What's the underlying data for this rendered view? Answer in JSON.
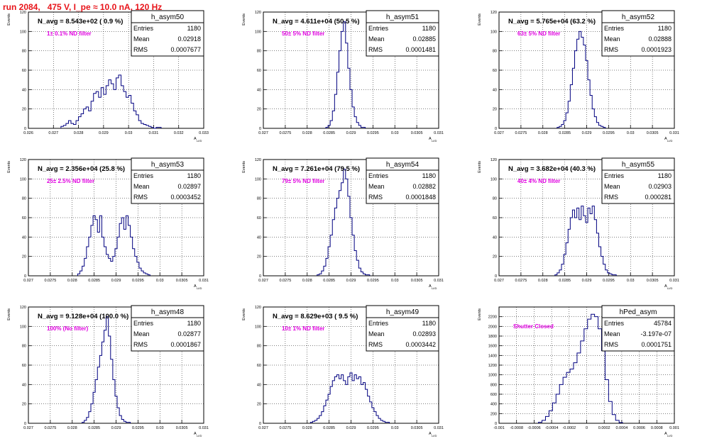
{
  "run_title": "run 2084,   475 V, I_pe ≈ 10.0 nA, 120 Hz",
  "y_axis_title": "Events",
  "x_axis_title": "A",
  "x_axis_subscript": "LI/D",
  "stat_labels": {
    "entries": "Entries",
    "mean": "Mean",
    "rms": "RMS"
  },
  "colors": {
    "title": "#e8141a",
    "annotation": "#e000e0",
    "hist": "#000080",
    "grid": "#000000"
  },
  "chart_data": [
    {
      "type": "histogram",
      "name": "h_asym50",
      "navg_label": "N_avg = 8.543e+02 ( 0.9 %)",
      "annotation": "1± 0.1% ND filter",
      "entries": "1180",
      "mean": "0.02918",
      "rms": "0.0007677",
      "xlim": [
        0.026,
        0.033
      ],
      "ylim": [
        0,
        120
      ],
      "xticks": [
        "0.026",
        "0.027",
        "0.028",
        "0.029",
        "0.03",
        "0.031",
        "0.032",
        "0.033"
      ],
      "yticks": [
        "0",
        "20",
        "40",
        "60",
        "80",
        "100",
        "120"
      ],
      "x": [
        0.02735,
        0.02745,
        0.02755,
        0.02765,
        0.02775,
        0.02785,
        0.02795,
        0.02805,
        0.02815,
        0.02825,
        0.02835,
        0.02845,
        0.02855,
        0.02865,
        0.02875,
        0.02885,
        0.02895,
        0.02905,
        0.02915,
        0.02925,
        0.02935,
        0.02945,
        0.02955,
        0.02965,
        0.02975,
        0.02985,
        0.02995,
        0.03005,
        0.03015,
        0.03025,
        0.03035,
        0.03045,
        0.03055,
        0.03065,
        0.03075,
        0.03085,
        0.03095,
        0.03105,
        0.03115,
        0.03125
      ],
      "values": [
        2,
        3,
        5,
        8,
        5,
        4,
        8,
        12,
        15,
        20,
        22,
        18,
        28,
        36,
        38,
        32,
        42,
        35,
        44,
        50,
        46,
        40,
        52,
        55,
        44,
        38,
        32,
        34,
        26,
        18,
        14,
        8,
        5,
        4,
        3,
        2,
        1,
        0,
        1,
        1
      ]
    },
    {
      "type": "histogram",
      "name": "h_asym51",
      "navg_label": "N_avg = 4.611e+04 (50.5 %)",
      "annotation": "50± 5% ND filter",
      "entries": "1180",
      "mean": "0.02885",
      "rms": "0.0001481",
      "xlim": [
        0.027,
        0.031
      ],
      "ylim": [
        0,
        120
      ],
      "xticks": [
        "0.027",
        "0.0275",
        "0.028",
        "0.0285",
        "0.029",
        "0.0295",
        "0.03",
        "0.0305",
        "0.031"
      ],
      "yticks": [
        "0",
        "20",
        "40",
        "60",
        "80",
        "100",
        "120"
      ],
      "x": [
        0.02845,
        0.0285,
        0.02855,
        0.0286,
        0.02865,
        0.0287,
        0.02875,
        0.0288,
        0.02885,
        0.0289,
        0.02895,
        0.029,
        0.02905,
        0.0291,
        0.02915,
        0.0292,
        0.02925,
        0.0293
      ],
      "values": [
        1,
        3,
        8,
        18,
        35,
        58,
        80,
        100,
        110,
        88,
        62,
        40,
        22,
        12,
        6,
        3,
        1,
        1
      ]
    },
    {
      "type": "histogram",
      "name": "h_asym52",
      "navg_label": "N_avg = 5.765e+04 (63.2 %)",
      "annotation": "63± 5% ND filter",
      "entries": "1180",
      "mean": "0.02888",
      "rms": "0.0001923",
      "xlim": [
        0.027,
        0.031
      ],
      "ylim": [
        0,
        120
      ],
      "xticks": [
        "0.027",
        "0.0275",
        "0.028",
        "0.0285",
        "0.029",
        "0.0295",
        "0.03",
        "0.0305",
        "0.031"
      ],
      "yticks": [
        "0",
        "20",
        "40",
        "60",
        "80",
        "100",
        "120"
      ],
      "x": [
        0.02835,
        0.0284,
        0.02845,
        0.0285,
        0.02855,
        0.0286,
        0.02865,
        0.0287,
        0.02875,
        0.0288,
        0.02885,
        0.0289,
        0.02895,
        0.029,
        0.02905,
        0.0291,
        0.02915,
        0.0292,
        0.02925,
        0.0293,
        0.02935,
        0.0294
      ],
      "values": [
        1,
        2,
        4,
        8,
        16,
        28,
        45,
        62,
        80,
        92,
        100,
        94,
        86,
        70,
        50,
        34,
        20,
        12,
        6,
        3,
        2,
        1
      ]
    },
    {
      "type": "histogram",
      "name": "h_asym53",
      "navg_label": "N_avg = 2.356e+04 (25.8 %)",
      "annotation": "25± 2.5% ND filter",
      "entries": "1180",
      "mean": "0.02897",
      "rms": "0.0003452",
      "xlim": [
        0.027,
        0.031
      ],
      "ylim": [
        0,
        120
      ],
      "xticks": [
        "0.027",
        "0.0275",
        "0.028",
        "0.0285",
        "0.029",
        "0.0295",
        "0.03",
        "0.0305",
        "0.031"
      ],
      "yticks": [
        "0",
        "20",
        "40",
        "60",
        "80",
        "100",
        "120"
      ],
      "x": [
        0.02815,
        0.0282,
        0.02825,
        0.0283,
        0.02835,
        0.0284,
        0.02845,
        0.0285,
        0.02855,
        0.0286,
        0.02865,
        0.0287,
        0.02875,
        0.0288,
        0.02885,
        0.0289,
        0.02895,
        0.029,
        0.02905,
        0.0291,
        0.02915,
        0.0292,
        0.02925,
        0.0293,
        0.02935,
        0.0294,
        0.02945,
        0.0295,
        0.02955,
        0.0296,
        0.02965,
        0.0297,
        0.02975
      ],
      "values": [
        2,
        5,
        10,
        18,
        30,
        40,
        52,
        62,
        58,
        45,
        62,
        40,
        30,
        22,
        18,
        15,
        20,
        28,
        40,
        54,
        60,
        48,
        62,
        52,
        40,
        28,
        20,
        14,
        8,
        5,
        3,
        2,
        1
      ]
    },
    {
      "type": "histogram",
      "name": "h_asym54",
      "navg_label": "N_avg = 7.261e+04 (79.5 %)",
      "annotation": "79± 5% ND filter",
      "entries": "1180",
      "mean": "0.02882",
      "rms": "0.0001848",
      "xlim": [
        0.027,
        0.031
      ],
      "ylim": [
        0,
        120
      ],
      "xticks": [
        "0.027",
        "0.0275",
        "0.028",
        "0.0285",
        "0.029",
        "0.0295",
        "0.03",
        "0.0305",
        "0.031"
      ],
      "yticks": [
        "0",
        "20",
        "40",
        "60",
        "80",
        "100",
        "120"
      ],
      "x": [
        0.02825,
        0.0283,
        0.02835,
        0.0284,
        0.02845,
        0.0285,
        0.02855,
        0.0286,
        0.02865,
        0.0287,
        0.02875,
        0.0288,
        0.02885,
        0.0289,
        0.02895,
        0.029,
        0.02905,
        0.0291,
        0.02915,
        0.0292,
        0.02925,
        0.0293,
        0.02935,
        0.0294
      ],
      "values": [
        1,
        2,
        5,
        10,
        18,
        30,
        42,
        58,
        70,
        80,
        88,
        96,
        110,
        100,
        82,
        60,
        42,
        26,
        16,
        8,
        4,
        2,
        1,
        1
      ]
    },
    {
      "type": "histogram",
      "name": "h_asym55",
      "navg_label": "N_avg = 3.682e+04 (40.3 %)",
      "annotation": "40± 4% ND filter",
      "entries": "1180",
      "mean": "0.02903",
      "rms": "0.000281",
      "xlim": [
        0.027,
        0.031
      ],
      "ylim": [
        0,
        120
      ],
      "xticks": [
        "0.027",
        "0.0275",
        "0.028",
        "0.0285",
        "0.029",
        "0.0295",
        "0.03",
        "0.0305",
        "0.031"
      ],
      "yticks": [
        "0",
        "20",
        "40",
        "60",
        "80",
        "100",
        "120"
      ],
      "x": [
        0.0283,
        0.02835,
        0.0284,
        0.02845,
        0.0285,
        0.02855,
        0.0286,
        0.02865,
        0.0287,
        0.02875,
        0.0288,
        0.02885,
        0.0289,
        0.02895,
        0.029,
        0.02905,
        0.0291,
        0.02915,
        0.0292,
        0.02925,
        0.0293,
        0.02935,
        0.0294,
        0.02945,
        0.0295,
        0.02955,
        0.0296,
        0.02965
      ],
      "values": [
        1,
        3,
        6,
        12,
        22,
        34,
        48,
        60,
        68,
        60,
        70,
        58,
        72,
        62,
        55,
        70,
        64,
        72,
        58,
        44,
        30,
        20,
        12,
        6,
        3,
        2,
        1,
        1
      ]
    },
    {
      "type": "histogram",
      "name": "h_asym48",
      "navg_label": "N_avg = 9.128e+04 (100.0 %)",
      "annotation": "100% (No filter)",
      "entries": "1180",
      "mean": "0.02877",
      "rms": "0.0001867",
      "xlim": [
        0.027,
        0.031
      ],
      "ylim": [
        0,
        120
      ],
      "xticks": [
        "0.027",
        "0.0275",
        "0.028",
        "0.0285",
        "0.029",
        "0.0295",
        "0.03",
        "0.0305",
        "0.031"
      ],
      "yticks": [
        "0",
        "20",
        "40",
        "60",
        "80",
        "100",
        "120"
      ],
      "x": [
        0.02825,
        0.0283,
        0.02835,
        0.0284,
        0.02845,
        0.0285,
        0.02855,
        0.0286,
        0.02865,
        0.0287,
        0.02875,
        0.0288,
        0.02885,
        0.0289,
        0.02895,
        0.029,
        0.02905,
        0.0291,
        0.02915,
        0.0292,
        0.02925,
        0.0293
      ],
      "values": [
        1,
        3,
        6,
        12,
        20,
        32,
        45,
        58,
        70,
        84,
        96,
        110,
        90,
        66,
        45,
        28,
        16,
        8,
        4,
        2,
        1,
        1
      ]
    },
    {
      "type": "histogram",
      "name": "h_asym49",
      "navg_label": "N_avg = 8.629e+03 ( 9.5 %)",
      "annotation": "10± 1% ND filter",
      "entries": "1180",
      "mean": "0.02893",
      "rms": "0.0003442",
      "xlim": [
        0.027,
        0.031
      ],
      "ylim": [
        0,
        120
      ],
      "xticks": [
        "0.027",
        "0.0275",
        "0.028",
        "0.0285",
        "0.029",
        "0.0295",
        "0.03",
        "0.0305",
        "0.031"
      ],
      "yticks": [
        "0",
        "20",
        "40",
        "60",
        "80",
        "100",
        "120"
      ],
      "x": [
        0.0281,
        0.02815,
        0.0282,
        0.02825,
        0.0283,
        0.02835,
        0.0284,
        0.02845,
        0.0285,
        0.02855,
        0.0286,
        0.02865,
        0.0287,
        0.02875,
        0.0288,
        0.02885,
        0.0289,
        0.02895,
        0.029,
        0.02905,
        0.0291,
        0.02915,
        0.0292,
        0.02925,
        0.0293,
        0.02935,
        0.0294,
        0.02945,
        0.0295,
        0.02955,
        0.0296,
        0.02965,
        0.0297,
        0.02975,
        0.0298,
        0.02985
      ],
      "values": [
        1,
        2,
        3,
        5,
        8,
        12,
        18,
        24,
        30,
        38,
        44,
        48,
        50,
        46,
        50,
        44,
        40,
        48,
        52,
        44,
        50,
        46,
        48,
        40,
        42,
        35,
        28,
        22,
        16,
        12,
        8,
        5,
        3,
        2,
        1,
        1
      ]
    },
    {
      "type": "histogram",
      "name": "hPed_asym",
      "navg_label": "",
      "annotation": "Shutter Closed",
      "entries": "45784",
      "mean": "-3.197e-07",
      "rms": "0.0001751",
      "xlim": [
        -0.001,
        0.001
      ],
      "ylim": [
        0,
        2400
      ],
      "xticks": [
        "-0.001",
        "-0.0008",
        "-0.0006",
        "-0.0004",
        "-0.0002",
        "0",
        "0.0002",
        "0.0004",
        "0.0006",
        "0.0008",
        "0.001"
      ],
      "yticks": [
        "0",
        "200",
        "400",
        "600",
        "800",
        "1000",
        "1200",
        "1400",
        "1600",
        "1800",
        "2000",
        "2200"
      ],
      "x": [
        -0.00053,
        -0.00049,
        -0.00045,
        -0.00041,
        -0.00037,
        -0.00033,
        -0.00029,
        -0.00025,
        -0.00021,
        -0.00017,
        -0.00013,
        -9e-05,
        -5e-05,
        -1e-05,
        3e-05,
        7e-05,
        0.00011,
        0.00015,
        0.00019,
        0.00023,
        0.00027,
        0.00031,
        0.00035,
        0.00039
      ],
      "values": [
        20,
        60,
        140,
        260,
        420,
        600,
        800,
        950,
        1050,
        1120,
        1250,
        1450,
        1700,
        1950,
        2150,
        2250,
        2200,
        1950,
        1500,
        900,
        450,
        180,
        60,
        15
      ]
    }
  ]
}
